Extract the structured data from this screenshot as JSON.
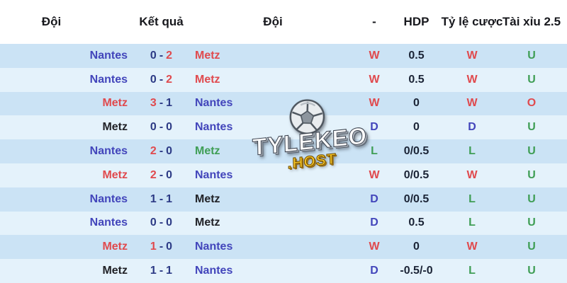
{
  "header": {
    "team1": "Đội",
    "result": "Kết quả",
    "team2": "Đội",
    "dash": "-",
    "hdp": "HDP",
    "odds": "Tỷ lệ cược",
    "over_under": "Tài xỉu 2.5"
  },
  "watermark": {
    "title": "TYLEKEO",
    "subtitle": ".HOST",
    "icon": "soccer-ball-icon"
  },
  "colors": {
    "team_blue": "#4245bb",
    "result_red": "#e04a4e",
    "result_green": "#3f9e55",
    "score_navy": "#2c3a85",
    "draw_black": "#212227",
    "row_shade_dark": "#cbe3f5",
    "row_shade_light": "#e4f2fb"
  },
  "rows": [
    {
      "team1": "Nantes",
      "team1_color": "blue",
      "score1": "0",
      "score1_color": "navy",
      "score2": "2",
      "score2_color": "red",
      "team2": "Metz",
      "team2_color": "red",
      "hdp_result": "W",
      "hdp_result_color": "red",
      "hdp": "0.5",
      "odds_result": "W",
      "odds_result_color": "red",
      "ou": "U",
      "ou_color": "green",
      "shade": "dark"
    },
    {
      "team1": "Nantes",
      "team1_color": "blue",
      "score1": "0",
      "score1_color": "navy",
      "score2": "2",
      "score2_color": "red",
      "team2": "Metz",
      "team2_color": "red",
      "hdp_result": "W",
      "hdp_result_color": "red",
      "hdp": "0.5",
      "odds_result": "W",
      "odds_result_color": "red",
      "ou": "U",
      "ou_color": "green",
      "shade": "light"
    },
    {
      "team1": "Metz",
      "team1_color": "red",
      "score1": "3",
      "score1_color": "red",
      "score2": "1",
      "score2_color": "navy",
      "team2": "Nantes",
      "team2_color": "blue",
      "hdp_result": "W",
      "hdp_result_color": "red",
      "hdp": "0",
      "odds_result": "W",
      "odds_result_color": "red",
      "ou": "O",
      "ou_color": "red",
      "shade": "dark"
    },
    {
      "team1": "Metz",
      "team1_color": "black",
      "score1": "0",
      "score1_color": "navy",
      "score2": "0",
      "score2_color": "navy",
      "team2": "Nantes",
      "team2_color": "blue",
      "hdp_result": "D",
      "hdp_result_color": "blue",
      "hdp": "0",
      "odds_result": "D",
      "odds_result_color": "blue",
      "ou": "U",
      "ou_color": "green",
      "shade": "light"
    },
    {
      "team1": "Nantes",
      "team1_color": "blue",
      "score1": "2",
      "score1_color": "red",
      "score2": "0",
      "score2_color": "navy",
      "team2": "Metz",
      "team2_color": "green",
      "hdp_result": "L",
      "hdp_result_color": "green",
      "hdp": "0/0.5",
      "odds_result": "L",
      "odds_result_color": "green",
      "ou": "U",
      "ou_color": "green",
      "shade": "dark"
    },
    {
      "team1": "Metz",
      "team1_color": "red",
      "score1": "2",
      "score1_color": "red",
      "score2": "0",
      "score2_color": "navy",
      "team2": "Nantes",
      "team2_color": "blue",
      "hdp_result": "W",
      "hdp_result_color": "red",
      "hdp": "0/0.5",
      "odds_result": "W",
      "odds_result_color": "red",
      "ou": "U",
      "ou_color": "green",
      "shade": "light"
    },
    {
      "team1": "Nantes",
      "team1_color": "blue",
      "score1": "1",
      "score1_color": "navy",
      "score2": "1",
      "score2_color": "navy",
      "team2": "Metz",
      "team2_color": "black",
      "hdp_result": "D",
      "hdp_result_color": "blue",
      "hdp": "0/0.5",
      "odds_result": "L",
      "odds_result_color": "green",
      "ou": "U",
      "ou_color": "green",
      "shade": "dark"
    },
    {
      "team1": "Nantes",
      "team1_color": "blue",
      "score1": "0",
      "score1_color": "navy",
      "score2": "0",
      "score2_color": "navy",
      "team2": "Metz",
      "team2_color": "black",
      "hdp_result": "D",
      "hdp_result_color": "blue",
      "hdp": "0.5",
      "odds_result": "L",
      "odds_result_color": "green",
      "ou": "U",
      "ou_color": "green",
      "shade": "light"
    },
    {
      "team1": "Metz",
      "team1_color": "red",
      "score1": "1",
      "score1_color": "red",
      "score2": "0",
      "score2_color": "navy",
      "team2": "Nantes",
      "team2_color": "blue",
      "hdp_result": "W",
      "hdp_result_color": "red",
      "hdp": "0",
      "odds_result": "W",
      "odds_result_color": "red",
      "ou": "U",
      "ou_color": "green",
      "shade": "dark"
    },
    {
      "team1": "Metz",
      "team1_color": "black",
      "score1": "1",
      "score1_color": "navy",
      "score2": "1",
      "score2_color": "navy",
      "team2": "Nantes",
      "team2_color": "blue",
      "hdp_result": "D",
      "hdp_result_color": "blue",
      "hdp": "-0.5/-0",
      "odds_result": "L",
      "odds_result_color": "green",
      "ou": "U",
      "ou_color": "green",
      "shade": "light"
    }
  ]
}
